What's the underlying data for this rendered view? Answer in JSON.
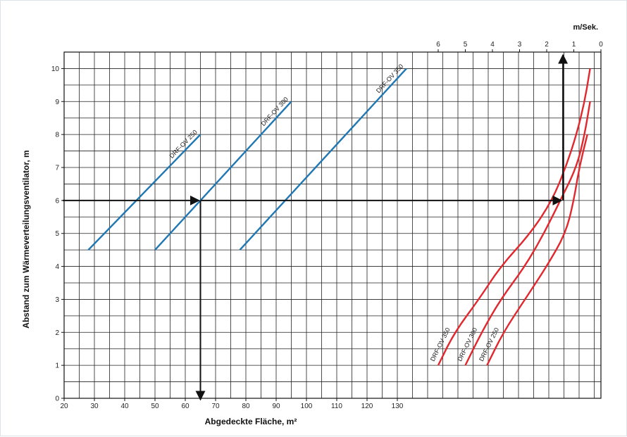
{
  "chart_data": {
    "type": "line",
    "xlabel": "Abgedeckte Fläche, m²",
    "ylabel": "Abstand zum Wärmeverteilungsventilator, m",
    "x_top_label": "m/Sek.",
    "x_bottom_ticks": [
      "20",
      "30",
      "40",
      "50",
      "60",
      "70",
      "80",
      "90",
      "100",
      "110",
      "120",
      "130"
    ],
    "x_top_ticks": [
      "6",
      "5",
      "4",
      "3",
      "2",
      "1",
      "0"
    ],
    "y_ticks": [
      "0",
      "1",
      "2",
      "3",
      "4",
      "5",
      "6",
      "7",
      "8",
      "9",
      "10"
    ],
    "xlim": [
      20,
      130
    ],
    "top_xlim": [
      6,
      0
    ],
    "ylim": [
      0,
      10
    ],
    "grid": true,
    "colors": {
      "area_series": "#1f77b4",
      "speed_series": "#e0282e",
      "reading_arrows": "#111111",
      "grid": "#222222"
    },
    "area_series": [
      {
        "name": "DRF-OV 250",
        "x": [
          28,
          65
        ],
        "y": [
          4.5,
          8
        ]
      },
      {
        "name": "DRF-OV 300",
        "x": [
          50,
          95
        ],
        "y": [
          4.5,
          9
        ]
      },
      {
        "name": "DRF-OV 350",
        "x": [
          78,
          133
        ],
        "y": [
          4.5,
          10
        ]
      }
    ],
    "speed_series": [
      {
        "name": "DRF-OV 350",
        "speed": [
          6.0,
          5.4,
          4.5,
          3.7,
          2.6,
          1.8,
          1.3,
          0.9,
          0.6,
          0.4
        ],
        "y": [
          1,
          2,
          3,
          4,
          5,
          6,
          7,
          8,
          9,
          10
        ]
      },
      {
        "name": "DRF-OV 300",
        "speed": [
          5.0,
          4.4,
          3.7,
          2.8,
          2.1,
          1.5,
          0.9,
          0.6,
          0.4
        ],
        "y": [
          1,
          2,
          3,
          4,
          5,
          6,
          7,
          8,
          9
        ]
      },
      {
        "name": "DRF-OV 250",
        "speed": [
          4.2,
          3.6,
          2.8,
          2.0,
          1.3,
          1.0,
          0.8,
          0.5
        ],
        "y": [
          1,
          2,
          3,
          4,
          5,
          6,
          7,
          8
        ]
      }
    ],
    "reading_example": {
      "distance": 6,
      "area": 65,
      "speed": 1.4
    }
  }
}
